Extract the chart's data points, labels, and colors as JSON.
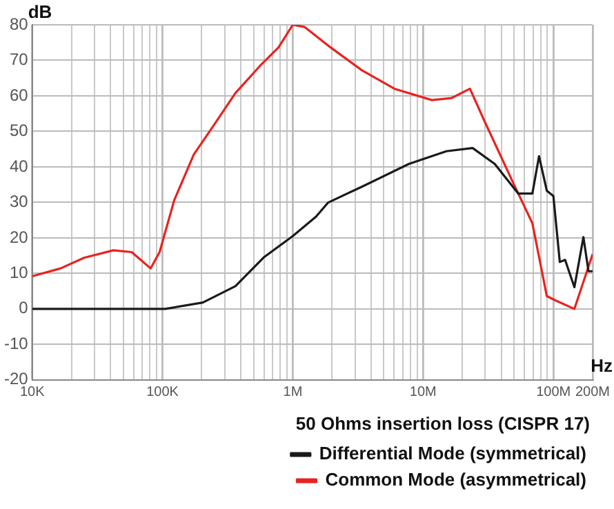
{
  "chart_data": {
    "type": "line",
    "xlabel": "Hz",
    "ylabel": "dB",
    "legend_title": "50 Ohms insertion loss (CISPR 17)",
    "legend": "bottom",
    "grid": true,
    "marker": "none",
    "line_style": "solid",
    "log": "x",
    "xlim": [
      10000,
      200000000
    ],
    "ylim": [
      -20,
      80
    ],
    "xticks": [
      {
        "value": 10000,
        "label": "10K"
      },
      {
        "value": 20000,
        "label": null
      },
      {
        "value": 30000,
        "label": null
      },
      {
        "value": 40000,
        "label": null
      },
      {
        "value": 50000,
        "label": null
      },
      {
        "value": 60000,
        "label": null
      },
      {
        "value": 70000,
        "label": null
      },
      {
        "value": 80000,
        "label": null
      },
      {
        "value": 90000,
        "label": null
      },
      {
        "value": 100000,
        "label": "100K"
      },
      {
        "value": 200000,
        "label": null
      },
      {
        "value": 300000,
        "label": null
      },
      {
        "value": 400000,
        "label": null
      },
      {
        "value": 500000,
        "label": null
      },
      {
        "value": 600000,
        "label": null
      },
      {
        "value": 700000,
        "label": null
      },
      {
        "value": 800000,
        "label": null
      },
      {
        "value": 900000,
        "label": null
      },
      {
        "value": 1000000,
        "label": "1M"
      },
      {
        "value": 2000000,
        "label": null
      },
      {
        "value": 3000000,
        "label": null
      },
      {
        "value": 4000000,
        "label": null
      },
      {
        "value": 5000000,
        "label": null
      },
      {
        "value": 6000000,
        "label": null
      },
      {
        "value": 7000000,
        "label": null
      },
      {
        "value": 8000000,
        "label": null
      },
      {
        "value": 9000000,
        "label": null
      },
      {
        "value": 10000000,
        "label": "10M"
      },
      {
        "value": 20000000,
        "label": null
      },
      {
        "value": 30000000,
        "label": null
      },
      {
        "value": 40000000,
        "label": null
      },
      {
        "value": 50000000,
        "label": null
      },
      {
        "value": 60000000,
        "label": null
      },
      {
        "value": 70000000,
        "label": null
      },
      {
        "value": 80000000,
        "label": null
      },
      {
        "value": 90000000,
        "label": null
      },
      {
        "value": 100000000,
        "label": "100M"
      },
      {
        "value": 200000000,
        "label": "200M"
      }
    ],
    "yticks": [
      -20,
      -10,
      0,
      10,
      20,
      30,
      40,
      50,
      60,
      70,
      80
    ],
    "series": [
      {
        "name": "Differential Mode (symmetrical)",
        "color": "#1a1a1a",
        "x": [
          10000,
          105000,
          204000,
          363000,
          603000,
          1000000,
          1510000,
          1860000,
          3390000,
          7760000,
          15100000,
          24000000,
          35500000,
          53700000,
          69000000,
          77600000,
          89000000,
          100000000,
          112000000,
          123000000,
          145000000,
          170000000,
          186000000,
          200000000
        ],
        "values": [
          0,
          0,
          1.8,
          6.4,
          14.6,
          20.5,
          26,
          29.9,
          34.4,
          40.8,
          44.4,
          45.3,
          40.8,
          32.5,
          32.5,
          43,
          33.3,
          31.8,
          13.2,
          13.8,
          6.1,
          20.2,
          10.6,
          10.6
        ]
      },
      {
        "name": "Common Mode (asymmetrical)",
        "color": "#e8231f",
        "x": [
          10000,
          16500,
          25000,
          42000,
          58000,
          81000,
          95000,
          123000,
          174000,
          240000,
          363000,
          562000,
          776000,
          1000000,
          1230000,
          1860000,
          3390000,
          6030000,
          11700000,
          16600000,
          22900000,
          29500000,
          49000000,
          69000000,
          89000000,
          105000000,
          145000000,
          174000000,
          200000000
        ],
        "values": [
          9.2,
          11.4,
          14.4,
          16.5,
          16,
          11.4,
          16,
          30.6,
          43.5,
          51,
          60.8,
          68.5,
          73.6,
          80,
          79.4,
          74.2,
          67.2,
          62,
          58.8,
          59.4,
          62,
          53,
          35.6,
          24.1,
          3.6,
          2.3,
          0,
          8.7,
          15.4
        ]
      }
    ]
  }
}
